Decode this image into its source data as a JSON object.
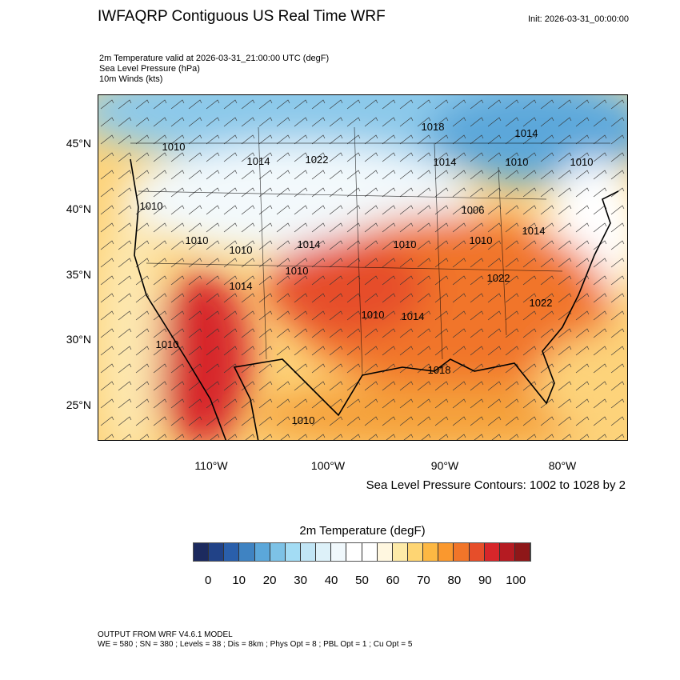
{
  "header": {
    "title": "IWFAQRP Contiguous US Real Time WRF",
    "init": "Init: 2026-03-31_00:00:00",
    "fields": [
      "2m Temperature valid at 2026-03-31_21:00:00 UTC   (degF)",
      "Sea Level Pressure   (hPa)",
      "10m Winds   (kts)"
    ]
  },
  "map": {
    "lat_labels": [
      "45°N",
      "40°N",
      "35°N",
      "30°N",
      "25°N"
    ],
    "lon_labels": [
      "110°W",
      "100°W",
      "90°W",
      "80°W"
    ],
    "contour_labels": [
      "1018",
      "1014",
      "1010",
      "1014",
      "1022",
      "1014",
      "1010",
      "1010",
      "1010",
      "1006",
      "1010",
      "1010",
      "1014",
      "1010",
      "1010",
      "1014",
      "1010",
      "1014",
      "1022",
      "1010",
      "1014",
      "1022",
      "1010",
      "1018",
      "1010"
    ],
    "contour_note": "Sea Level Pressure Contours: 1002 to 1028 by 2"
  },
  "colorbar": {
    "title": "2m Temperature  (degF)",
    "colors": [
      "#1c2a5e",
      "#214287",
      "#2a5fab",
      "#3f83c2",
      "#5ba7da",
      "#7dc2e6",
      "#a3dcf4",
      "#c1e5f5",
      "#ddf1f9",
      "#f0f8fc",
      "#ffffff",
      "#ffffff",
      "#fff7e0",
      "#fdeaa8",
      "#fed573",
      "#fdb843",
      "#fa982e",
      "#f17529",
      "#e64e2a",
      "#d7262a",
      "#b51b22",
      "#8e1719"
    ],
    "labels": [
      "0",
      "10",
      "20",
      "30",
      "40",
      "50",
      "60",
      "70",
      "80",
      "90",
      "100"
    ]
  },
  "footer": {
    "line1": "OUTPUT FROM WRF V4.6.1 MODEL",
    "line2": "WE = 580 ; SN = 380 ; Levels = 38 ; Dis = 8km ; Phys Opt = 8 ; PBL Opt = 1 ; Cu Opt = 5"
  }
}
